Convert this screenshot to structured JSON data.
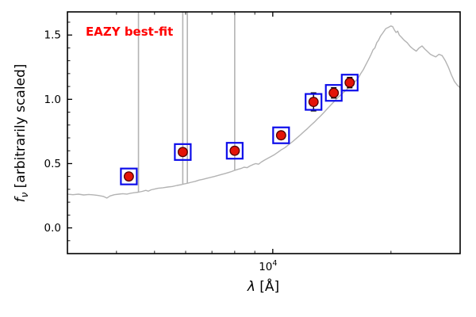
{
  "chart_data": {
    "type": "line",
    "title": "EAZY best-fit",
    "title_color": "#ff0000",
    "xlabel_parts": {
      "symbol": "λ",
      "rest": " [Å]"
    },
    "ylabel_parts": {
      "symbol": "f",
      "sub": "ν",
      "rest": " [arbitrarily scaled]"
    },
    "xscale": "log",
    "xlim": [
      3000,
      30000
    ],
    "ylim": [
      -0.2,
      1.68
    ],
    "yticks": [
      {
        "v": 0.0,
        "label": "0.0"
      },
      {
        "v": 0.5,
        "label": "0.5"
      },
      {
        "v": 1.0,
        "label": "1.0"
      },
      {
        "v": 1.5,
        "label": "1.5"
      }
    ],
    "ytick_minor_step": 0.1,
    "xtick_major": {
      "v": 10000,
      "base": "10",
      "exp": "4"
    },
    "xticks_minor": [
      3000,
      4000,
      5000,
      6000,
      7000,
      8000,
      9000,
      20000,
      30000
    ],
    "colors": {
      "model_line": "#b3b3b3",
      "square": "#0d0dea",
      "point_fill": "#e41408",
      "point_edge": "#550000",
      "error_bar": "#000000",
      "axis": "#000000"
    },
    "series": [
      {
        "name": "model-spectrum",
        "type": "line",
        "points": [
          [
            3000,
            0.262
          ],
          [
            3100,
            0.258
          ],
          [
            3200,
            0.262
          ],
          [
            3300,
            0.256
          ],
          [
            3400,
            0.26
          ],
          [
            3500,
            0.257
          ],
          [
            3600,
            0.252
          ],
          [
            3700,
            0.245
          ],
          [
            3780,
            0.232
          ],
          [
            3850,
            0.248
          ],
          [
            3950,
            0.258
          ],
          [
            4050,
            0.262
          ],
          [
            4150,
            0.266
          ],
          [
            4250,
            0.263
          ],
          [
            4350,
            0.27
          ],
          [
            4450,
            0.274
          ],
          [
            4550,
            0.278
          ],
          [
            4650,
            0.284
          ],
          [
            4750,
            0.292
          ],
          [
            4820,
            0.286
          ],
          [
            4900,
            0.296
          ],
          [
            5000,
            0.302
          ],
          [
            5100,
            0.308
          ],
          [
            5250,
            0.312
          ],
          [
            5400,
            0.318
          ],
          [
            5550,
            0.322
          ],
          [
            5700,
            0.33
          ],
          [
            5850,
            0.336
          ],
          [
            5950,
            0.342
          ],
          [
            6080,
            0.348
          ],
          [
            6200,
            0.355
          ],
          [
            6350,
            0.362
          ],
          [
            6500,
            0.372
          ],
          [
            6650,
            0.378
          ],
          [
            6800,
            0.386
          ],
          [
            6950,
            0.393
          ],
          [
            7100,
            0.4
          ],
          [
            7250,
            0.408
          ],
          [
            7400,
            0.415
          ],
          [
            7550,
            0.422
          ],
          [
            7700,
            0.43
          ],
          [
            7850,
            0.438
          ],
          [
            8000,
            0.448
          ],
          [
            8150,
            0.455
          ],
          [
            8300,
            0.462
          ],
          [
            8450,
            0.472
          ],
          [
            8600,
            0.468
          ],
          [
            8750,
            0.482
          ],
          [
            8900,
            0.492
          ],
          [
            9050,
            0.5
          ],
          [
            9200,
            0.495
          ],
          [
            9350,
            0.512
          ],
          [
            9500,
            0.525
          ],
          [
            9700,
            0.54
          ],
          [
            9900,
            0.555
          ],
          [
            10100,
            0.57
          ],
          [
            10300,
            0.588
          ],
          [
            10500,
            0.606
          ],
          [
            10750,
            0.625
          ],
          [
            11000,
            0.65
          ],
          [
            11250,
            0.672
          ],
          [
            11500,
            0.698
          ],
          [
            11750,
            0.722
          ],
          [
            12000,
            0.748
          ],
          [
            12250,
            0.772
          ],
          [
            12500,
            0.798
          ],
          [
            12750,
            0.822
          ],
          [
            13000,
            0.848
          ],
          [
            13250,
            0.872
          ],
          [
            13500,
            0.898
          ],
          [
            13750,
            0.925
          ],
          [
            14000,
            0.95
          ],
          [
            14250,
            0.975
          ],
          [
            14500,
            1.0
          ],
          [
            14750,
            1.022
          ],
          [
            15000,
            1.042
          ],
          [
            15250,
            1.062
          ],
          [
            15500,
            1.082
          ],
          [
            15750,
            1.102
          ],
          [
            16000,
            1.122
          ],
          [
            16250,
            1.142
          ],
          [
            16500,
            1.165
          ],
          [
            16750,
            1.2
          ],
          [
            17000,
            1.23
          ],
          [
            17200,
            1.26
          ],
          [
            17400,
            1.29
          ],
          [
            17600,
            1.32
          ],
          [
            17800,
            1.35
          ],
          [
            18000,
            1.385
          ],
          [
            18200,
            1.4
          ],
          [
            18400,
            1.44
          ],
          [
            18600,
            1.46
          ],
          [
            18800,
            1.49
          ],
          [
            19000,
            1.51
          ],
          [
            19200,
            1.53
          ],
          [
            19400,
            1.55
          ],
          [
            19700,
            1.56
          ],
          [
            20000,
            1.57
          ],
          [
            20200,
            1.565
          ],
          [
            20400,
            1.54
          ],
          [
            20600,
            1.52
          ],
          [
            20800,
            1.53
          ],
          [
            21000,
            1.5
          ],
          [
            21300,
            1.48
          ],
          [
            21600,
            1.46
          ],
          [
            22000,
            1.44
          ],
          [
            22400,
            1.41
          ],
          [
            22800,
            1.39
          ],
          [
            23200,
            1.375
          ],
          [
            23600,
            1.4
          ],
          [
            24000,
            1.415
          ],
          [
            24400,
            1.39
          ],
          [
            24800,
            1.37
          ],
          [
            25200,
            1.35
          ],
          [
            25600,
            1.34
          ],
          [
            26000,
            1.33
          ],
          [
            26500,
            1.35
          ],
          [
            27000,
            1.34
          ],
          [
            27500,
            1.3
          ],
          [
            28000,
            1.25
          ],
          [
            28500,
            1.19
          ],
          [
            29000,
            1.14
          ],
          [
            29500,
            1.11
          ],
          [
            30000,
            1.09
          ]
        ]
      }
    ],
    "emission_lines": [
      {
        "wavelength": 4550,
        "from": 0.278,
        "to": 1.68
      },
      {
        "wavelength": 5900,
        "from": 0.338,
        "to": 1.68
      },
      {
        "wavelength": 6060,
        "from": 0.346,
        "to": 1.68
      },
      {
        "wavelength": 8000,
        "from": 0.448,
        "to": 1.66
      }
    ],
    "photometry": {
      "name": "observed-photometry",
      "points": [
        {
          "wavelength": 4300,
          "flux": 0.4,
          "err": 0.025
        },
        {
          "wavelength": 5900,
          "flux": 0.59,
          "err": 0.025
        },
        {
          "wavelength": 8000,
          "flux": 0.6,
          "err": 0.025
        },
        {
          "wavelength": 10500,
          "flux": 0.72,
          "err": 0.03
        },
        {
          "wavelength": 12700,
          "flux": 0.98,
          "err": 0.07
        },
        {
          "wavelength": 14300,
          "flux": 1.05,
          "err": 0.04
        },
        {
          "wavelength": 15700,
          "flux": 1.13,
          "err": 0.04
        }
      ]
    }
  }
}
